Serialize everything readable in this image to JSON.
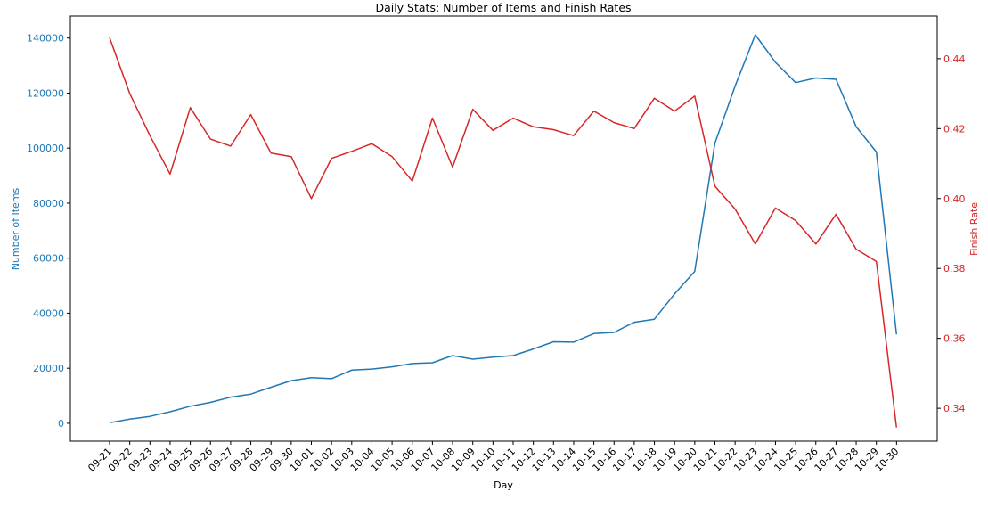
{
  "chart_data": {
    "type": "line",
    "title": "Daily Stats: Number of Items and Finish Rates",
    "xlabel": "Day",
    "ylabel_left": "Number of Items",
    "ylabel_right": "Finish Rate",
    "categories": [
      "09-21",
      "09-22",
      "09-23",
      "09-24",
      "09-25",
      "09-26",
      "09-27",
      "09-28",
      "09-29",
      "09-30",
      "10-01",
      "10-02",
      "10-03",
      "10-04",
      "10-05",
      "10-06",
      "10-07",
      "10-08",
      "10-09",
      "10-10",
      "10-11",
      "10-12",
      "10-13",
      "10-14",
      "10-15",
      "10-16",
      "10-17",
      "10-18",
      "10-19",
      "10-20",
      "10-21",
      "10-22",
      "10-23",
      "10-24",
      "10-25",
      "10-26",
      "10-27",
      "10-28",
      "10-29",
      "10-30"
    ],
    "left_axis": {
      "ylim": [
        -6500,
        148000
      ],
      "ticks": [
        0,
        20000,
        40000,
        60000,
        80000,
        100000,
        120000,
        140000
      ],
      "color": "#1f77b4"
    },
    "right_axis": {
      "ylim": [
        0.3306,
        0.4522
      ],
      "ticks": [
        0.34,
        0.36,
        0.38,
        0.4,
        0.42,
        0.44
      ],
      "tick_labels": [
        "0.34",
        "0.36",
        "0.38",
        "0.40",
        "0.42",
        "0.44"
      ],
      "color": "#d62728"
    },
    "grid": false,
    "series": [
      {
        "axis": "left",
        "color": "#1f77b4",
        "values": [
          200,
          1500,
          2500,
          4200,
          6200,
          7600,
          9500,
          10600,
          13100,
          15500,
          16600,
          16200,
          19300,
          19700,
          20500,
          21700,
          22000,
          24600,
          23300,
          24000,
          24600,
          27000,
          29600,
          29500,
          32600,
          33000,
          36700,
          37800,
          47000,
          55200,
          101800,
          122500,
          141200,
          131200,
          123800,
          125500,
          125000,
          107800,
          98600,
          32300
        ]
      },
      {
        "axis": "right",
        "color": "#d62728",
        "values": [
          0.446,
          0.43,
          0.418,
          0.407,
          0.426,
          0.417,
          0.415,
          0.424,
          0.413,
          0.412,
          0.4,
          0.4115,
          0.4135,
          0.4157,
          0.412,
          0.405,
          0.423,
          0.409,
          0.4255,
          0.4195,
          0.423,
          0.4205,
          0.4197,
          0.418,
          0.425,
          0.4217,
          0.42,
          0.4287,
          0.425,
          0.4293,
          0.4035,
          0.397,
          0.387,
          0.3973,
          0.3937,
          0.387,
          0.3955,
          0.3855,
          0.382,
          0.3345
        ]
      }
    ]
  }
}
